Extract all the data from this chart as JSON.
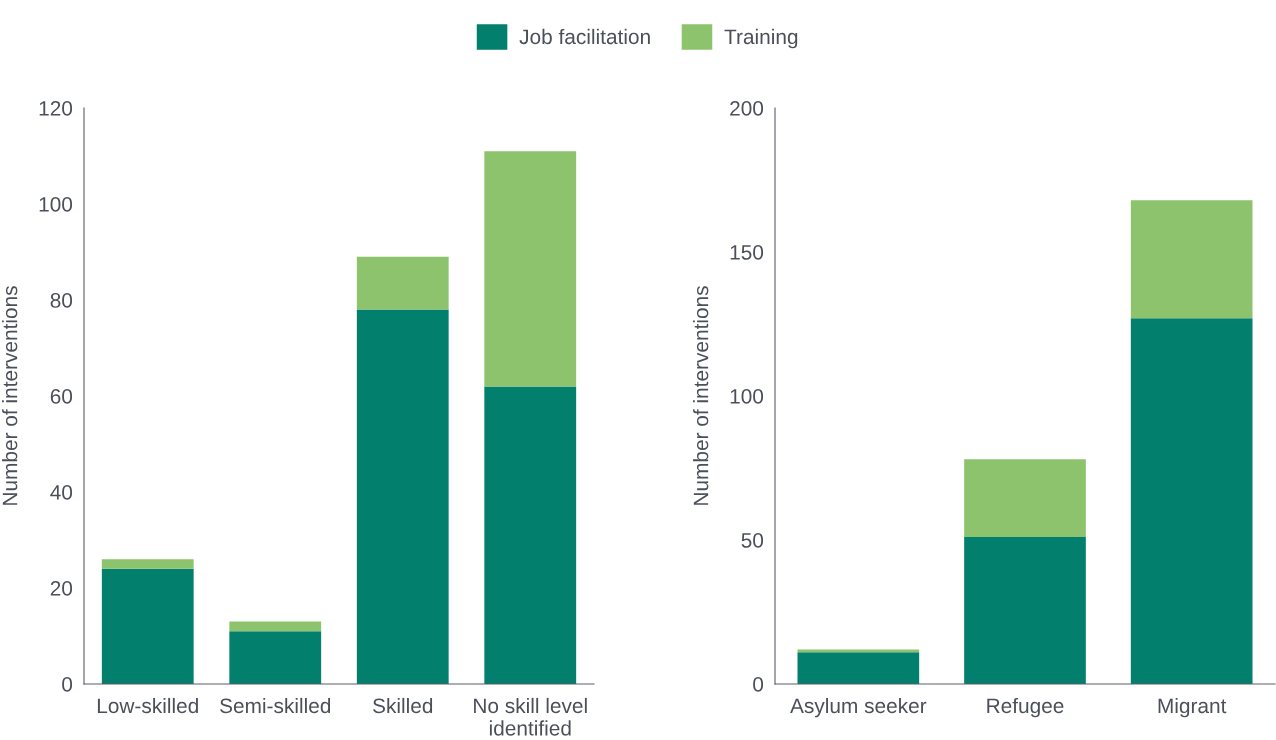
{
  "chart_data": [
    {
      "type": "bar",
      "stacked": true,
      "ylabel": "Number of interventions",
      "categories": [
        "Low-skilled",
        "Semi-skilled",
        "Skilled",
        "No skill level identified"
      ],
      "ylim": [
        0,
        120
      ],
      "yticks": [
        0,
        20,
        40,
        60,
        80,
        100,
        120
      ],
      "grid": false,
      "legend": "top",
      "series": [
        {
          "name": "Job facilitation",
          "color": "#037f6e",
          "values": [
            24,
            11,
            78,
            62
          ]
        },
        {
          "name": "Training",
          "color": "#8dc36d",
          "values": [
            2,
            2,
            11,
            49
          ]
        }
      ]
    },
    {
      "type": "bar",
      "stacked": true,
      "ylabel": "Number of interventions",
      "categories": [
        "Asylum seeker",
        "Refugee",
        "Migrant"
      ],
      "ylim": [
        0,
        200
      ],
      "yticks": [
        0,
        50,
        100,
        150,
        200
      ],
      "grid": false,
      "series": [
        {
          "name": "Job facilitation",
          "color": "#037f6e",
          "values": [
            11,
            51,
            127
          ]
        },
        {
          "name": "Training",
          "color": "#8dc36d",
          "values": [
            1,
            27,
            41
          ]
        }
      ]
    }
  ]
}
